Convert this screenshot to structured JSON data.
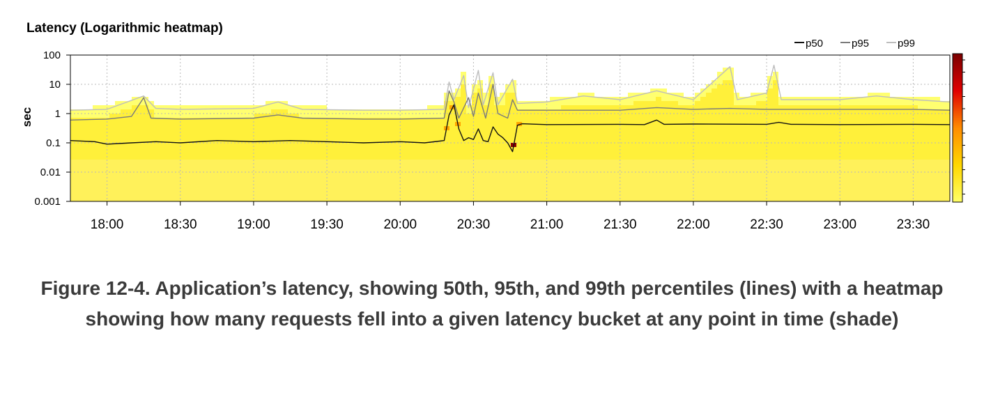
{
  "chart_data": {
    "type": "heatmap",
    "title": "Latency (Logarithmic heatmap)",
    "ylabel": "sec",
    "y_scale": "log",
    "ylim": [
      0.001,
      100
    ],
    "y_ticks": [
      "100",
      "10",
      "1",
      "0.1",
      "0.01",
      "0.001"
    ],
    "y_tick_values": [
      100,
      10,
      1,
      0.1,
      0.01,
      0.001
    ],
    "xlim": [
      "17:45",
      "23:45"
    ],
    "x_ticks": [
      "18:00",
      "18:30",
      "19:00",
      "19:30",
      "20:00",
      "20:30",
      "21:00",
      "21:30",
      "22:00",
      "22:30",
      "23:00",
      "23:30"
    ],
    "grid": true,
    "legend_position": "top-right",
    "colorscale": [
      "#ffff66",
      "#ffd700",
      "#ff8c00",
      "#e00000",
      "#7a0000"
    ],
    "series": [
      {
        "name": "p50",
        "color": "#111111",
        "points": [
          [
            "17:45",
            0.12
          ],
          [
            "17:55",
            0.11
          ],
          [
            "18:00",
            0.09
          ],
          [
            "18:10",
            0.1
          ],
          [
            "18:20",
            0.11
          ],
          [
            "18:30",
            0.1
          ],
          [
            "18:45",
            0.12
          ],
          [
            "19:00",
            0.11
          ],
          [
            "19:15",
            0.12
          ],
          [
            "19:30",
            0.11
          ],
          [
            "19:45",
            0.1
          ],
          [
            "20:00",
            0.11
          ],
          [
            "20:10",
            0.1
          ],
          [
            "20:18",
            0.12
          ],
          [
            "20:20",
            0.9
          ],
          [
            "20:22",
            2.0
          ],
          [
            "20:24",
            0.3
          ],
          [
            "20:26",
            0.12
          ],
          [
            "20:28",
            0.15
          ],
          [
            "20:30",
            0.13
          ],
          [
            "20:32",
            0.3
          ],
          [
            "20:34",
            0.12
          ],
          [
            "20:36",
            0.11
          ],
          [
            "20:38",
            0.35
          ],
          [
            "20:40",
            0.2
          ],
          [
            "20:42",
            0.15
          ],
          [
            "20:44",
            0.1
          ],
          [
            "20:46",
            0.05
          ],
          [
            "20:48",
            0.4
          ],
          [
            "20:50",
            0.45
          ],
          [
            "21:00",
            0.42
          ],
          [
            "21:30",
            0.43
          ],
          [
            "21:40",
            0.42
          ],
          [
            "21:45",
            0.6
          ],
          [
            "21:48",
            0.43
          ],
          [
            "22:00",
            0.44
          ],
          [
            "22:30",
            0.43
          ],
          [
            "22:35",
            0.5
          ],
          [
            "22:40",
            0.43
          ],
          [
            "23:00",
            0.42
          ],
          [
            "23:30",
            0.43
          ],
          [
            "23:45",
            0.42
          ]
        ]
      },
      {
        "name": "p95",
        "color": "#7a7a7a",
        "points": [
          [
            "17:45",
            0.6
          ],
          [
            "18:00",
            0.65
          ],
          [
            "18:10",
            0.8
          ],
          [
            "18:15",
            3.5
          ],
          [
            "18:18",
            0.7
          ],
          [
            "18:30",
            0.65
          ],
          [
            "19:00",
            0.7
          ],
          [
            "19:10",
            0.9
          ],
          [
            "19:20",
            0.7
          ],
          [
            "19:45",
            0.65
          ],
          [
            "20:00",
            0.65
          ],
          [
            "20:18",
            0.7
          ],
          [
            "20:20",
            6.0
          ],
          [
            "20:22",
            2.5
          ],
          [
            "20:24",
            0.7
          ],
          [
            "20:28",
            3.5
          ],
          [
            "20:30",
            0.8
          ],
          [
            "20:32",
            5.0
          ],
          [
            "20:35",
            0.7
          ],
          [
            "20:38",
            10.0
          ],
          [
            "20:40",
            1.0
          ],
          [
            "20:44",
            0.7
          ],
          [
            "20:46",
            3.0
          ],
          [
            "20:48",
            1.3
          ],
          [
            "21:00",
            1.3
          ],
          [
            "21:30",
            1.3
          ],
          [
            "21:45",
            1.6
          ],
          [
            "22:00",
            1.4
          ],
          [
            "22:15",
            1.5
          ],
          [
            "22:30",
            1.4
          ],
          [
            "23:00",
            1.4
          ],
          [
            "23:30",
            1.4
          ],
          [
            "23:45",
            1.3
          ]
        ]
      },
      {
        "name": "p99",
        "color": "#bdbdbd",
        "points": [
          [
            "17:45",
            1.3
          ],
          [
            "18:00",
            1.4
          ],
          [
            "18:15",
            4.0
          ],
          [
            "18:20",
            1.5
          ],
          [
            "18:30",
            1.4
          ],
          [
            "19:00",
            1.5
          ],
          [
            "19:10",
            2.5
          ],
          [
            "19:20",
            1.4
          ],
          [
            "19:45",
            1.3
          ],
          [
            "20:00",
            1.3
          ],
          [
            "20:18",
            1.4
          ],
          [
            "20:20",
            12.0
          ],
          [
            "20:22",
            3.0
          ],
          [
            "20:26",
            20.0
          ],
          [
            "20:28",
            1.6
          ],
          [
            "20:32",
            30.0
          ],
          [
            "20:34",
            2.0
          ],
          [
            "20:38",
            25.0
          ],
          [
            "20:40",
            2.0
          ],
          [
            "20:46",
            15.0
          ],
          [
            "20:48",
            2.2
          ],
          [
            "21:00",
            2.5
          ],
          [
            "21:15",
            4.0
          ],
          [
            "21:30",
            3.0
          ],
          [
            "21:45",
            6.0
          ],
          [
            "22:00",
            3.0
          ],
          [
            "22:15",
            40.0
          ],
          [
            "22:18",
            3.0
          ],
          [
            "22:30",
            5.0
          ],
          [
            "22:33",
            45.0
          ],
          [
            "22:36",
            3.0
          ],
          [
            "23:00",
            3.0
          ],
          [
            "23:15",
            4.0
          ],
          [
            "23:30",
            3.0
          ],
          [
            "23:45",
            2.5
          ]
        ]
      }
    ]
  },
  "caption": "Figure 12-4. Application’s latency, showing 50th, 95th, and 99th percentiles (lines) with a heatmap showing how many requests fell into a given latency bucket at any point in time (shade)"
}
